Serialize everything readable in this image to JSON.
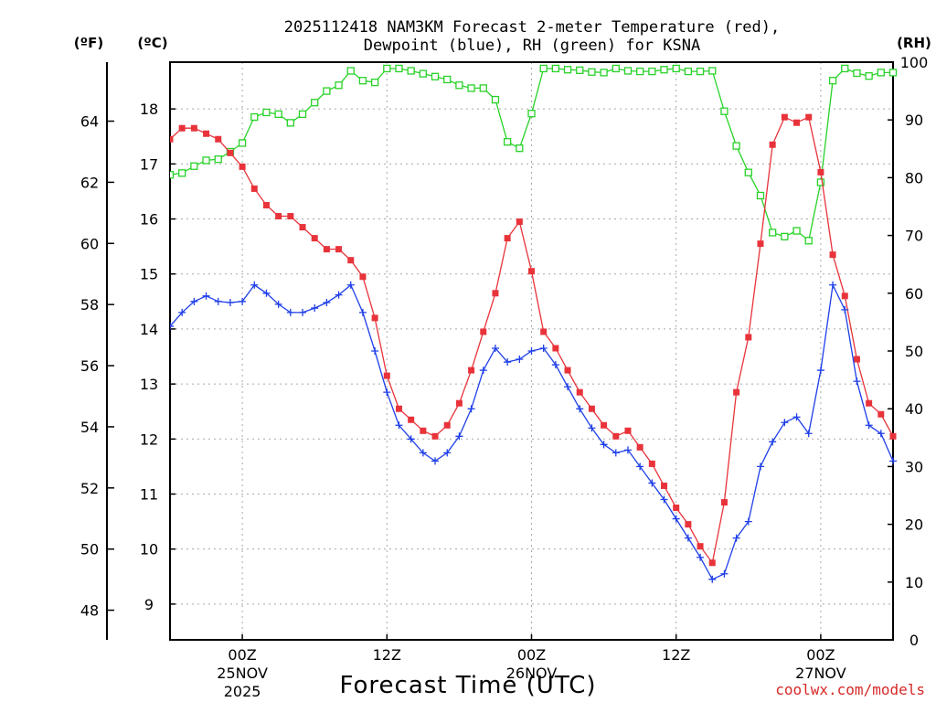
{
  "chart_data": {
    "type": "line",
    "title_line1": "2025112418 NAM3KM Forecast 2-meter Temperature (red),",
    "title_line2": "Dewpoint (blue), RH (green) for KSNA",
    "xlabel": "Forecast Time (UTC)",
    "credit": "coolwx.com/models",
    "units": {
      "fahrenheit": "(ºF)",
      "celsius": "(ºC)",
      "rh": "(RH)"
    },
    "x_hours_from_00z_25nov": {
      "range": [
        -6,
        54
      ]
    },
    "x_ticks": [
      {
        "hour": 0,
        "line1": "00Z",
        "line2": "25NOV",
        "line3": "2025"
      },
      {
        "hour": 12,
        "line1": "12Z",
        "line2": "",
        "line3": ""
      },
      {
        "hour": 24,
        "line1": "00Z",
        "line2": "26NOV",
        "line3": ""
      },
      {
        "hour": 36,
        "line1": "12Z",
        "line2": "",
        "line3": ""
      },
      {
        "hour": 48,
        "line1": "00Z",
        "line2": "27NOV",
        "line3": ""
      }
    ],
    "y_celsius": {
      "range": [
        8.35,
        18.85
      ],
      "ticks": [
        "9",
        "10",
        "11",
        "12",
        "13",
        "14",
        "15",
        "16",
        "17",
        "18"
      ]
    },
    "y_fahrenheit": {
      "ticks": [
        "48",
        "50",
        "52",
        "54",
        "56",
        "58",
        "60",
        "62",
        "64"
      ]
    },
    "y_rh": {
      "range": [
        0,
        100
      ],
      "ticks": [
        "0",
        "10",
        "20",
        "30",
        "40",
        "50",
        "60",
        "70",
        "80",
        "90",
        "100"
      ]
    },
    "series": [
      {
        "name": "Temperature",
        "unit": "C",
        "color": "#e8333a",
        "marker": "filled-square",
        "values": [
          17.45,
          17.65,
          17.65,
          17.55,
          17.45,
          17.2,
          16.95,
          16.55,
          16.25,
          16.05,
          16.05,
          15.85,
          15.65,
          15.45,
          15.45,
          15.25,
          14.95,
          14.2,
          13.15,
          12.55,
          12.35,
          12.15,
          12.05,
          12.25,
          12.65,
          13.25,
          13.95,
          14.65,
          15.65,
          15.95,
          15.05,
          13.95,
          13.65,
          13.25,
          12.85,
          12.55,
          12.25,
          12.05,
          12.15,
          11.85,
          11.55,
          11.15,
          10.75,
          10.45,
          10.05,
          9.75,
          10.85,
          12.85,
          13.85,
          15.55,
          17.35,
          17.85,
          17.75,
          17.85,
          16.85,
          15.35,
          14.6,
          13.45,
          12.65,
          12.45,
          12.05
        ]
      },
      {
        "name": "Dewpoint",
        "unit": "C",
        "color": "#1e3ee8",
        "marker": "plus",
        "values": [
          14.05,
          14.3,
          14.5,
          14.6,
          14.5,
          14.48,
          14.5,
          14.8,
          14.65,
          14.45,
          14.3,
          14.3,
          14.38,
          14.48,
          14.62,
          14.8,
          14.3,
          13.6,
          12.85,
          12.25,
          12.0,
          11.75,
          11.6,
          11.75,
          12.05,
          12.55,
          13.25,
          13.65,
          13.4,
          13.45,
          13.6,
          13.65,
          13.35,
          12.95,
          12.55,
          12.2,
          11.9,
          11.75,
          11.8,
          11.5,
          11.2,
          10.9,
          10.55,
          10.2,
          9.85,
          9.45,
          9.55,
          10.2,
          10.5,
          11.5,
          11.95,
          12.3,
          12.4,
          12.1,
          13.25,
          14.8,
          14.35,
          13.05,
          12.25,
          12.1,
          11.6
        ]
      },
      {
        "name": "Relative Humidity",
        "unit": "%",
        "color": "#28d228",
        "marker": "open-square",
        "values": [
          80.5,
          80.8,
          82,
          83,
          83.2,
          84.5,
          86,
          90.5,
          91.3,
          91,
          89.5,
          91,
          93,
          95,
          96,
          98.5,
          96.8,
          96.5,
          98.9,
          98.9,
          98.5,
          98,
          97.5,
          97,
          96,
          95.5,
          95.5,
          93.5,
          86.2,
          85.1,
          91.1,
          98.9,
          98.9,
          98.7,
          98.6,
          98.3,
          98.2,
          98.9,
          98.5,
          98.4,
          98.4,
          98.7,
          98.9,
          98.4,
          98.4,
          98.5,
          91.5,
          85.5,
          80.9,
          76.9,
          70.5,
          69.8,
          70.8,
          69.1,
          79.2,
          96.8,
          98.9,
          98.1,
          97.6,
          98.2,
          98.2
        ]
      }
    ]
  }
}
